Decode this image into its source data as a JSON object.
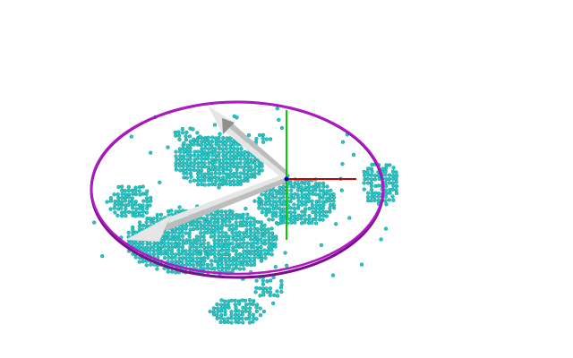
{
  "viewer": {
    "background": "#ffffff"
  },
  "colors": {
    "point_fill": "#25c9c9",
    "point_stroke": "#0f8f8f",
    "ellipse": "#b218c8",
    "ellipse_shadow": "#7a0f8a",
    "arrow_light": "#e6e6e6",
    "arrow_mid": "#bdbdbd",
    "arrow_dark": "#8f8f8f",
    "axis_x": "#cc0000",
    "axis_y": "#00cc00",
    "axis_z": "#0000cc"
  },
  "icons": {
    "origin_axes": "xyz-axes-icon",
    "principal_arrows": "arrow-icon"
  }
}
